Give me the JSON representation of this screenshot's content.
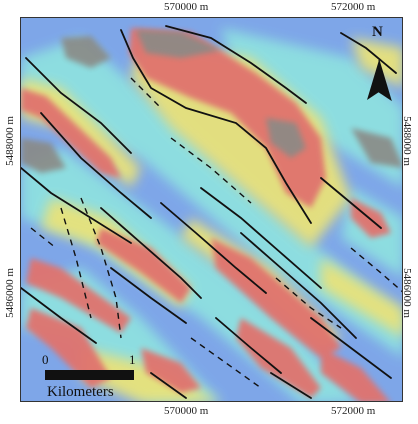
{
  "map": {
    "x_ticks_top": [
      "570000 m",
      "572000 m"
    ],
    "x_ticks_bottom": [
      "570000 m",
      "572000 m"
    ],
    "y_ticks_left": [
      "5488000 m",
      "5486000 m"
    ],
    "y_ticks_right": [
      "5488000 m",
      "5486000 m"
    ],
    "north_label": "N",
    "scale_bar": {
      "start_label": "0",
      "end_label": "1",
      "unit_label": "Kilometers"
    },
    "colors": {
      "low": "#7ea6e8",
      "mid": "#8ee0e0",
      "yellow": "#e8e27a",
      "high": "#e0736e",
      "peak": "#8a8a86",
      "lineament": "#111111"
    }
  }
}
